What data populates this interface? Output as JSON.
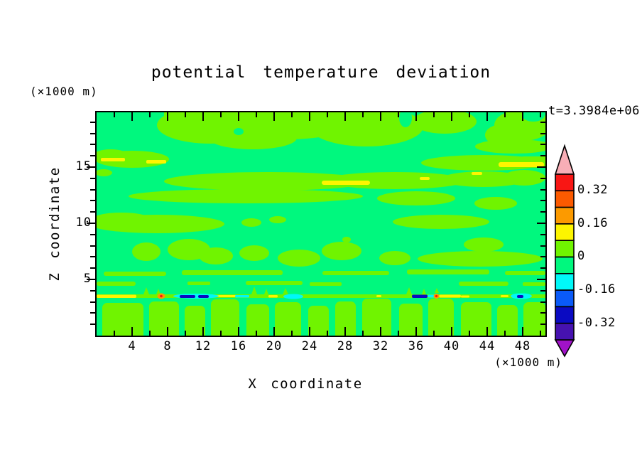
{
  "title": "potential temperature deviation",
  "time_label": "t=3.3984e+06",
  "axes": {
    "x": {
      "label": "X coordinate",
      "unit": "(×1000 m)",
      "major_ticks": [
        4,
        8,
        12,
        16,
        20,
        24,
        28,
        32,
        36,
        40,
        44,
        48
      ],
      "minor_step": 2,
      "range": [
        0,
        50.6
      ]
    },
    "y": {
      "label": "Z coordinate",
      "unit": "(×1000 m)",
      "major_ticks": [
        5,
        10,
        15
      ],
      "minor_step": 1,
      "range": [
        0,
        19.87
      ]
    }
  },
  "colorbar": {
    "labels": [
      "0.32",
      "0.16",
      "0",
      "-0.16",
      "-0.32"
    ],
    "label_boundary_indices": [
      1,
      3,
      5,
      7,
      9
    ],
    "cell_colors_top_to_bottom": [
      "#F81614",
      "#FC5A00",
      "#FC9A00",
      "#FDF500",
      "#70F400",
      "#00F87E",
      "#00F8F8",
      "#0A5AF8",
      "#0A0AC2",
      "#4612B0"
    ],
    "top_arrow_color": "#F8AEB6",
    "bottom_arrow_color": "#A012C8"
  },
  "palette": {
    "background": "#FFFFFF",
    "frame_and_text": "#000000",
    "field_base_green": "#00F87E",
    "field_chartreuse": "#70F400",
    "yellow": "#FDF500",
    "orange": "#FC9A00",
    "orange_red": "#FC5A00",
    "red": "#F81614",
    "cyan": "#00F8F8",
    "blue": "#0A5AF8",
    "navy": "#0A0AC2",
    "indigo": "#4612B0",
    "purple": "#A012C8",
    "pink": "#F8AEB6"
  },
  "chart_data": {
    "type": "filled-contour",
    "title": "potential temperature deviation",
    "xlabel": "X coordinate",
    "ylabel": "Z coordinate",
    "x_unit": "(×1000 m)",
    "y_unit": "(×1000 m)",
    "xlim": [
      0,
      50.6
    ],
    "ylim": [
      0,
      19.87
    ],
    "time_annotation": "t=3.3984e+06",
    "contour_interval": 0.08,
    "contour_levels": [
      -0.4,
      -0.32,
      -0.24,
      -0.16,
      -0.08,
      0,
      0.08,
      0.16,
      0.24,
      0.32,
      0.4
    ],
    "labeled_levels": [
      0.32,
      0.16,
      0,
      -0.16,
      -0.32
    ],
    "field_summary": {
      "dominant_band": "-0.08 to 0 (spring green) over most of the domain",
      "secondary_band": "0 to 0.08 (chartreuse) in wavy horizontal layers near z=1-3, 4.5-6, 7-8.5, 9-10.5, 12-14.5, 15-16.5 and 17-20 (x1000 m)",
      "positive_streaks_0.08_to_0.16": [
        {
          "x": [
            1.5,
            3.8
          ],
          "z": 15.7
        },
        {
          "x": [
            5.7,
            7.8
          ],
          "z": 15.5
        },
        {
          "x": [
            25,
            30.5
          ],
          "z": 13.7
        },
        {
          "x": [
            36.6,
            37.4
          ],
          "z": 14.0
        },
        {
          "x": [
            42.5,
            43.4
          ],
          "z": 14.5
        },
        {
          "x": [
            45.5,
            50.6
          ],
          "z": 15.2
        },
        {
          "x": [
            0,
            4.5
          ],
          "z": 3.5
        },
        {
          "x": [
            13,
            16
          ],
          "z": 3.5
        },
        {
          "x": [
            19.4,
            20.3
          ],
          "z": 3.5
        },
        {
          "x": [
            38.5,
            41
          ],
          "z": 3.5
        }
      ],
      "warm_spots_above_0.24": [
        {
          "x": 7.4,
          "z": 3.5
        },
        {
          "x": 38.3,
          "z": 3.5
        }
      ],
      "negative_streaks_below_-0.16": [
        {
          "x": [
            9.4,
            12.6
          ],
          "z": 3.5
        },
        {
          "x": [
            35.6,
            37.4
          ],
          "z": 3.5
        },
        {
          "x": [
            47.4,
            48.1
          ],
          "z": 3.5
        }
      ],
      "cool_patches_-0.16_to_-0.08": [
        {
          "x": [
            8.6,
            13.8
          ],
          "z": 3.5
        },
        {
          "x": [
            20.6,
            22.4
          ],
          "z": 3.5
        },
        {
          "x": [
            36,
            38.2
          ],
          "z": 3.5
        },
        {
          "x": [
            46.8,
            49
          ],
          "z": 3.5
        }
      ]
    }
  }
}
